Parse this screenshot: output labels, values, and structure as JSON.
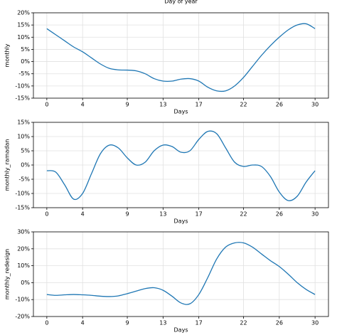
{
  "chart_data": [
    {
      "type": "line",
      "title": "Day of year",
      "xlabel": "Days",
      "ylabel": "monthly",
      "x": [
        0,
        1,
        2,
        3,
        4,
        5,
        6,
        7,
        8,
        9,
        10,
        11,
        12,
        13,
        14,
        15,
        16,
        17,
        18,
        19,
        20,
        21,
        22,
        23,
        24,
        25,
        26,
        27,
        28,
        29,
        30
      ],
      "series": [
        {
          "name": "monthly",
          "color": "#1f77b4",
          "values": [
            13.5,
            11,
            8.5,
            6,
            4,
            1.5,
            -1,
            -2.8,
            -3.4,
            -3.5,
            -3.8,
            -5,
            -7,
            -8,
            -8,
            -7.2,
            -7,
            -8,
            -10.5,
            -12,
            -12,
            -10,
            -6.5,
            -2,
            2.5,
            6.5,
            10,
            13,
            15,
            15.5,
            13.5
          ]
        }
      ],
      "xlim": [
        -1.5,
        31.5
      ],
      "xticks": [
        0,
        4,
        9,
        13,
        17,
        22,
        26,
        30
      ],
      "ylim": [
        -15,
        20
      ],
      "yticks": [
        {
          "value": -15,
          "label": "-15%"
        },
        {
          "value": -10,
          "label": "-10%"
        },
        {
          "value": -5,
          "label": "-5%"
        },
        {
          "value": 0,
          "label": "0%"
        },
        {
          "value": 5,
          "label": "5%"
        },
        {
          "value": 10,
          "label": "10%"
        },
        {
          "value": 15,
          "label": "15%"
        },
        {
          "value": 20,
          "label": "20%"
        }
      ],
      "grid": true
    },
    {
      "type": "line",
      "xlabel": "Days",
      "ylabel": "monthly_ramadan",
      "x": [
        0,
        1,
        2,
        3,
        4,
        5,
        6,
        7,
        8,
        9,
        10,
        11,
        12,
        13,
        14,
        15,
        16,
        17,
        18,
        19,
        20,
        21,
        22,
        23,
        24,
        25,
        26,
        27,
        28,
        29,
        30
      ],
      "series": [
        {
          "name": "monthly_ramadan",
          "color": "#1f77b4",
          "values": [
            -2,
            -2.5,
            -7,
            -12,
            -10,
            -3,
            4,
            7,
            6,
            2.5,
            0,
            1,
            5,
            7,
            6.5,
            4.5,
            5,
            9,
            11.8,
            11,
            6,
            1,
            -0.5,
            0,
            -0.5,
            -4,
            -9.5,
            -12.5,
            -11,
            -6,
            -2
          ]
        }
      ],
      "xlim": [
        -1.5,
        31.5
      ],
      "xticks": [
        0,
        4,
        9,
        13,
        17,
        22,
        26,
        30
      ],
      "ylim": [
        -15,
        15
      ],
      "yticks": [
        {
          "value": -15,
          "label": "-15%"
        },
        {
          "value": -10,
          "label": "-10%"
        },
        {
          "value": -5,
          "label": "-5%"
        },
        {
          "value": 0,
          "label": "0%"
        },
        {
          "value": 5,
          "label": "5%"
        },
        {
          "value": 10,
          "label": "10%"
        },
        {
          "value": 15,
          "label": "15%"
        }
      ],
      "grid": true
    },
    {
      "type": "line",
      "xlabel": "Days",
      "ylabel": "monthly_redesign",
      "x": [
        0,
        1,
        2,
        3,
        4,
        5,
        6,
        7,
        8,
        9,
        10,
        11,
        12,
        13,
        14,
        15,
        16,
        17,
        18,
        19,
        20,
        21,
        22,
        23,
        24,
        25,
        26,
        27,
        28,
        29,
        30
      ],
      "series": [
        {
          "name": "monthly_redesign",
          "color": "#1f77b4",
          "values": [
            -7,
            -7.5,
            -7.2,
            -7,
            -7.2,
            -7.5,
            -8,
            -8.2,
            -7.8,
            -6.5,
            -5,
            -3.5,
            -3,
            -4.5,
            -8,
            -12,
            -12.5,
            -7,
            3,
            14,
            21,
            23.5,
            23.5,
            21,
            17,
            13,
            9.5,
            5,
            0,
            -4,
            -7
          ]
        }
      ],
      "xlim": [
        -1.5,
        31.5
      ],
      "xticks": [
        0,
        4,
        9,
        13,
        17,
        22,
        26,
        30
      ],
      "ylim": [
        -20,
        30
      ],
      "yticks": [
        {
          "value": -20,
          "label": "-20%"
        },
        {
          "value": -10,
          "label": "-10%"
        },
        {
          "value": 0,
          "label": "0%"
        },
        {
          "value": 10,
          "label": "10%"
        },
        {
          "value": 20,
          "label": "20%"
        },
        {
          "value": 30,
          "label": "30%"
        }
      ],
      "grid": true
    }
  ]
}
